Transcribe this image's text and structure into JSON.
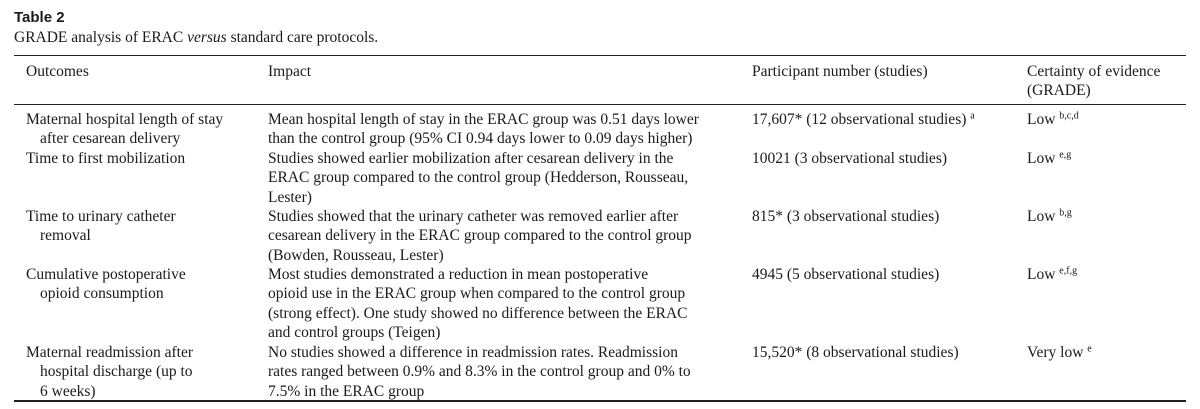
{
  "table": {
    "label": "Table 2",
    "caption_before": "GRADE analysis of ERAC ",
    "caption_italic": "versus",
    "caption_after": " standard care protocols.",
    "headers": {
      "outcomes": "Outcomes",
      "impact": "Impact",
      "participants": "Participant number (studies)",
      "certainty_line1": "Certainty of evidence",
      "certainty_line2": "(GRADE)"
    },
    "rows": [
      {
        "outcome": [
          "Maternal hospital length of stay",
          "after cesarean delivery"
        ],
        "impact": [
          "Mean hospital length of stay in the ERAC group was 0.51 days lower",
          "than the control group (95% CI 0.94 days lower to 0.09 days higher)"
        ],
        "participants": "17,607* (12 observational studies)",
        "participants_sup": "a",
        "certainty": "Low",
        "certainty_sup": "b,c,d"
      },
      {
        "outcome": [
          "Time to first mobilization"
        ],
        "impact": [
          "Studies showed earlier mobilization after cesarean delivery in the",
          "ERAC group compared to the control group (Hedderson, Rousseau,",
          "Lester)"
        ],
        "participants": "10021 (3 observational studies)",
        "participants_sup": "",
        "certainty": "Low",
        "certainty_sup": "e,g"
      },
      {
        "outcome": [
          "Time to urinary catheter",
          "removal"
        ],
        "impact": [
          "Studies showed that the urinary catheter was removed earlier after",
          "cesarean delivery in the ERAC group compared to the control group",
          "(Bowden, Rousseau, Lester)"
        ],
        "participants": "815* (3 observational studies)",
        "participants_sup": "",
        "certainty": "Low",
        "certainty_sup": "b,g"
      },
      {
        "outcome": [
          "Cumulative postoperative",
          "opioid consumption"
        ],
        "impact": [
          "Most studies demonstrated a reduction in mean postoperative",
          "opioid use in the ERAC group when compared to the control group",
          "(strong effect). One study showed no difference between the ERAC",
          "and control groups (Teigen)"
        ],
        "participants": "4945 (5 observational studies)",
        "participants_sup": "",
        "certainty": "Low",
        "certainty_sup": "e,f,g"
      },
      {
        "outcome": [
          "Maternal readmission after",
          "hospital discharge (up to",
          "6 weeks)"
        ],
        "impact": [
          "No studies showed a difference in readmission rates. Readmission",
          "rates ranged between 0.9% and 8.3% in the control group and 0% to",
          "7.5% in the ERAC group"
        ],
        "participants": "15,520* (8 observational studies)",
        "participants_sup": "",
        "certainty": "Very low",
        "certainty_sup": "e"
      }
    ]
  }
}
